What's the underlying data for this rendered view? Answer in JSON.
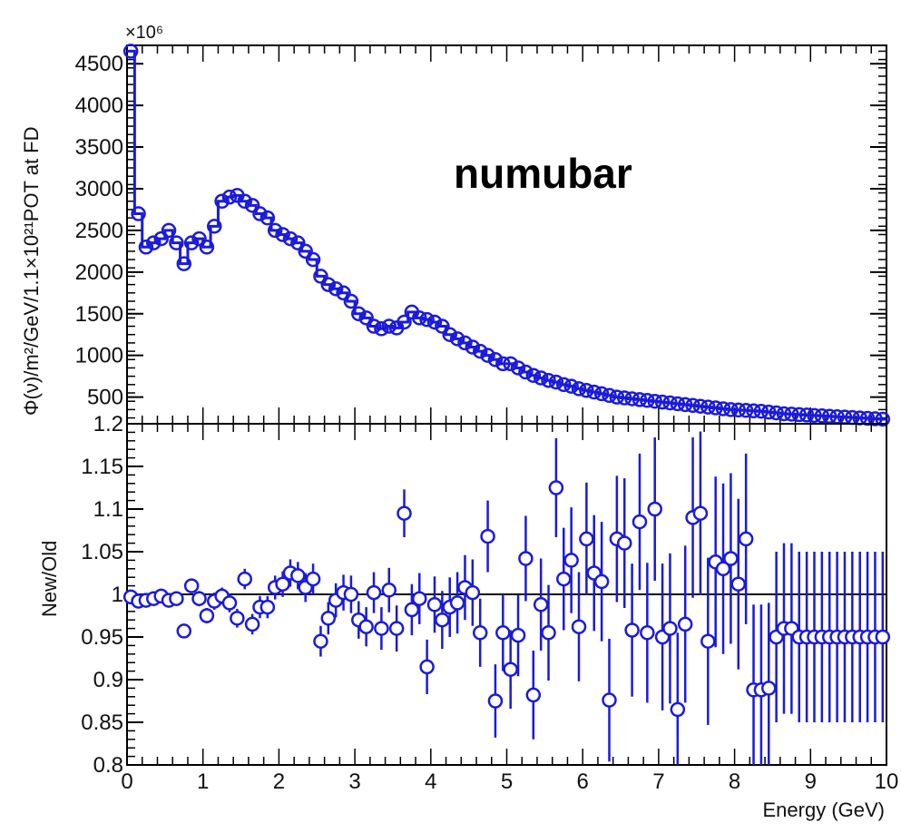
{
  "chart_data": [
    {
      "type": "scatter",
      "panel": "flux",
      "annotation": "numubar",
      "ylabel": "Φ(ν)/m²/GeV/1.1×10²¹POT at FD",
      "exponent_label": "×10⁶",
      "xlim": [
        0,
        10
      ],
      "ylim": [
        180,
        4720
      ],
      "yticks": [
        500,
        1000,
        1500,
        2000,
        2500,
        3000,
        3500,
        4000,
        4500
      ],
      "ytick_labels": [
        "500",
        "1000",
        "1500",
        "2000",
        "2500",
        "3000",
        "3500",
        "4000",
        "4500"
      ],
      "series": [
        {
          "name": "",
          "style": "hollow-circles",
          "x": [
            0.05,
            0.15,
            0.25,
            0.35,
            0.45,
            0.55,
            0.65,
            0.75,
            0.85,
            0.95,
            1.05,
            1.15,
            1.25,
            1.35,
            1.45,
            1.55,
            1.65,
            1.75,
            1.85,
            1.95,
            2.05,
            2.15,
            2.25,
            2.35,
            2.45,
            2.55,
            2.65,
            2.75,
            2.85,
            2.95,
            3.05,
            3.15,
            3.25,
            3.35,
            3.45,
            3.55,
            3.65,
            3.75,
            3.85,
            3.95,
            4.05,
            4.15,
            4.25,
            4.35,
            4.45,
            4.55,
            4.65,
            4.75,
            4.85,
            4.95,
            5.05,
            5.15,
            5.25,
            5.35,
            5.45,
            5.55,
            5.65,
            5.75,
            5.85,
            5.95,
            6.05,
            6.15,
            6.25,
            6.35,
            6.45,
            6.55,
            6.65,
            6.75,
            6.85,
            6.95,
            7.05,
            7.15,
            7.25,
            7.35,
            7.45,
            7.55,
            7.65,
            7.75,
            7.85,
            7.95,
            8.05,
            8.15,
            8.25,
            8.35,
            8.45,
            8.55,
            8.65,
            8.75,
            8.85,
            8.95,
            9.05,
            9.15,
            9.25,
            9.35,
            9.45,
            9.55,
            9.65,
            9.75,
            9.85,
            9.95
          ],
          "y": [
            4650,
            2700,
            2300,
            2350,
            2400,
            2500,
            2350,
            2100,
            2350,
            2400,
            2300,
            2550,
            2850,
            2900,
            2920,
            2850,
            2800,
            2700,
            2650,
            2500,
            2450,
            2400,
            2350,
            2250,
            2150,
            1950,
            1850,
            1800,
            1750,
            1650,
            1500,
            1450,
            1350,
            1320,
            1350,
            1330,
            1400,
            1520,
            1450,
            1430,
            1400,
            1350,
            1250,
            1200,
            1150,
            1100,
            1050,
            1000,
            950,
            900,
            900,
            850,
            800,
            760,
            730,
            700,
            680,
            650,
            630,
            600,
            580,
            560,
            540,
            520,
            500,
            490,
            480,
            470,
            460,
            450,
            440,
            430,
            420,
            410,
            400,
            390,
            380,
            370,
            360,
            350,
            345,
            340,
            335,
            330,
            320,
            310,
            300,
            295,
            290,
            285,
            280,
            275,
            270,
            265,
            260,
            255,
            250,
            245,
            240,
            235
          ]
        }
      ]
    },
    {
      "type": "scatter",
      "panel": "ratio",
      "xlabel": "Energy (GeV)",
      "ylabel": "New/Old",
      "xlim": [
        0,
        10
      ],
      "ylim": [
        0.8,
        1.2
      ],
      "xticks": [
        0,
        1,
        2,
        3,
        4,
        5,
        6,
        7,
        8,
        9,
        10
      ],
      "xtick_labels": [
        "0",
        "1",
        "2",
        "3",
        "4",
        "5",
        "6",
        "7",
        "8",
        "9",
        "10"
      ],
      "yticks": [
        0.8,
        0.85,
        0.9,
        0.95,
        1.0,
        1.05,
        1.1,
        1.15,
        1.2
      ],
      "ytick_labels": [
        "0.8",
        "0.85",
        "0.9",
        "0.95",
        "1",
        "1.05",
        "1.1",
        "1.15",
        "1.2"
      ],
      "reference_line": 1.0,
      "series": [
        {
          "name": "",
          "style": "hollow-circles-with-error-bars",
          "x": [
            0.05,
            0.15,
            0.25,
            0.35,
            0.45,
            0.55,
            0.65,
            0.75,
            0.85,
            0.95,
            1.05,
            1.15,
            1.25,
            1.35,
            1.45,
            1.55,
            1.65,
            1.75,
            1.85,
            1.95,
            2.05,
            2.15,
            2.25,
            2.35,
            2.45,
            2.55,
            2.65,
            2.75,
            2.85,
            2.95,
            3.05,
            3.15,
            3.25,
            3.35,
            3.45,
            3.55,
            3.65,
            3.75,
            3.85,
            3.95,
            4.05,
            4.15,
            4.25,
            4.35,
            4.45,
            4.55,
            4.65,
            4.75,
            4.85,
            4.95,
            5.05,
            5.15,
            5.25,
            5.35,
            5.45,
            5.55,
            5.65,
            5.75,
            5.85,
            5.95,
            6.05,
            6.15,
            6.25,
            6.35,
            6.45,
            6.55,
            6.65,
            6.75,
            6.85,
            6.95,
            7.05,
            7.15,
            7.25,
            7.35,
            7.45,
            7.55,
            7.65,
            7.75,
            7.85,
            7.95,
            8.05,
            8.15,
            8.25,
            8.35,
            8.45,
            8.55,
            8.65,
            8.75,
            8.85,
            8.95,
            9.05,
            9.15,
            9.25,
            9.35,
            9.45,
            9.55,
            9.65,
            9.75,
            9.85,
            9.95
          ],
          "y": [
            0.997,
            0.992,
            0.993,
            0.995,
            0.998,
            0.993,
            0.995,
            0.957,
            1.01,
            0.995,
            0.975,
            0.992,
            0.998,
            0.99,
            0.972,
            1.018,
            0.965,
            0.985,
            0.985,
            1.008,
            1.012,
            1.025,
            1.022,
            1.008,
            1.018,
            0.945,
            0.972,
            0.993,
            1.002,
            1.0,
            0.97,
            0.962,
            1.002,
            0.96,
            1.005,
            0.96,
            1.095,
            0.982,
            0.995,
            0.915,
            0.988,
            0.97,
            0.985,
            0.99,
            1.008,
            1.002,
            0.955,
            1.068,
            0.875,
            0.955,
            0.912,
            0.952,
            1.042,
            0.882,
            0.988,
            0.955,
            1.125,
            1.018,
            1.04,
            0.962,
            1.065,
            1.025,
            1.015,
            0.876,
            1.065,
            1.06,
            0.958,
            1.085,
            0.955,
            1.1,
            0.95,
            0.96,
            0.865,
            0.965,
            1.09,
            1.095,
            0.945,
            1.038,
            1.03,
            1.042,
            1.012,
            1.065,
            0.888,
            0.888,
            0.89,
            0.95,
            0.96,
            0.96,
            0.95,
            0.95,
            0.95,
            0.95,
            0.95,
            0.95,
            0.95,
            0.95,
            0.95,
            0.95,
            0.95,
            0.95
          ],
          "err": [
            0.003,
            0.004,
            0.004,
            0.005,
            0.006,
            0.006,
            0.007,
            0.008,
            0.008,
            0.009,
            0.009,
            0.01,
            0.01,
            0.011,
            0.011,
            0.012,
            0.012,
            0.013,
            0.013,
            0.014,
            0.015,
            0.016,
            0.016,
            0.017,
            0.018,
            0.018,
            0.019,
            0.02,
            0.021,
            0.022,
            0.022,
            0.023,
            0.024,
            0.025,
            0.026,
            0.027,
            0.028,
            0.03,
            0.03,
            0.032,
            0.033,
            0.034,
            0.035,
            0.036,
            0.038,
            0.039,
            0.04,
            0.042,
            0.043,
            0.045,
            0.046,
            0.048,
            0.05,
            0.052,
            0.054,
            0.056,
            0.058,
            0.06,
            0.062,
            0.064,
            0.066,
            0.068,
            0.07,
            0.072,
            0.074,
            0.076,
            0.078,
            0.08,
            0.082,
            0.084,
            0.086,
            0.088,
            0.09,
            0.092,
            0.094,
            0.096,
            0.098,
            0.1,
            0.1,
            0.1,
            0.1,
            0.1,
            0.1,
            0.1,
            0.1,
            0.1,
            0.1,
            0.1,
            0.1,
            0.1,
            0.1,
            0.1,
            0.1,
            0.1,
            0.1,
            0.1,
            0.1,
            0.1,
            0.1,
            0.1
          ]
        }
      ]
    }
  ],
  "colors": {
    "marker": "#1a1adc",
    "axes": "#000000"
  }
}
